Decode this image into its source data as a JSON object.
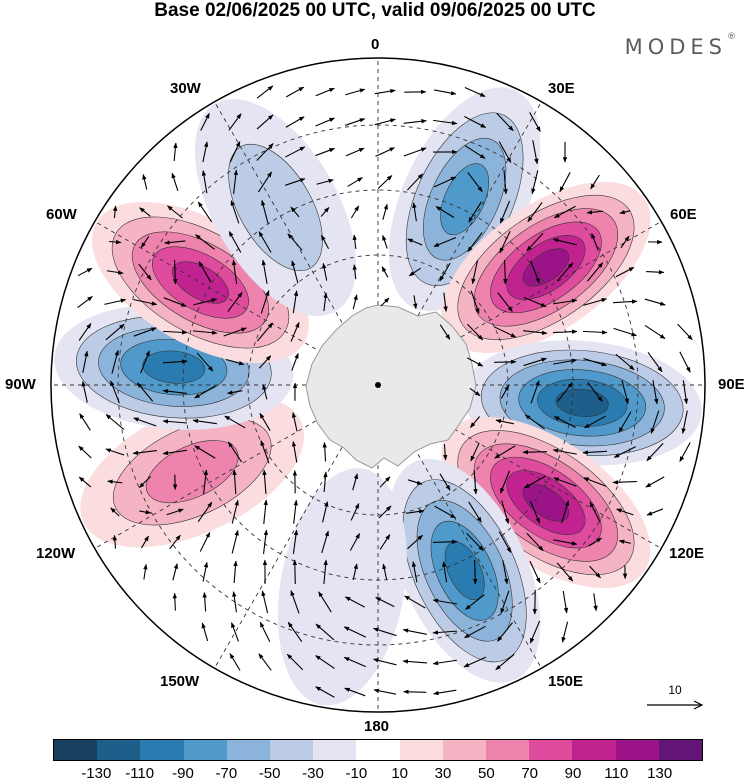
{
  "title": "Base 02/06/2025 00 UTC, valid 09/06/2025 00 UTC",
  "brand": "MODES",
  "brand_mark": "®",
  "longitude_labels": {
    "n0": "0",
    "n30e": "30E",
    "n60e": "60E",
    "n90e": "90E",
    "n120e": "120E",
    "n150e": "150E",
    "n180": "180",
    "n150w": "150W",
    "n120w": "120W",
    "n90w": "90W",
    "n60w": "60W",
    "n30w": "30W"
  },
  "vector_reference": {
    "value": "10"
  },
  "colorbar": {
    "tick_labels": [
      "-130",
      "-110",
      "-90",
      "-70",
      "-50",
      "-30",
      "-10",
      "10",
      "30",
      "50",
      "70",
      "90",
      "110",
      "130"
    ],
    "colors": [
      "#173f5f",
      "#1d5f8a",
      "#2a7cb0",
      "#4f9acb",
      "#8cb4da",
      "#bccbe6",
      "#e4e4f2",
      "#ffffff",
      "#fbdde0",
      "#f5b4c4",
      "#ee83ad",
      "#df4c9e",
      "#c0228f",
      "#9a1487",
      "#641478"
    ]
  },
  "map": {
    "projection": "south-polar-stereographic",
    "landmass": "Antarctica",
    "anomaly_features": [
      {
        "sign": "negative",
        "value": -90,
        "sector": "25E"
      },
      {
        "sign": "positive",
        "value": 120,
        "sector": "55E"
      },
      {
        "sign": "negative",
        "value": -130,
        "sector": "95E"
      },
      {
        "sign": "positive",
        "value": 125,
        "sector": "125E"
      },
      {
        "sign": "negative",
        "value": -100,
        "sector": "155E"
      },
      {
        "sign": "negative",
        "value": -30,
        "sector": "170W"
      },
      {
        "sign": "positive",
        "value": 70,
        "sector": "115W"
      },
      {
        "sign": "negative",
        "value": -110,
        "sector": "85W"
      },
      {
        "sign": "positive",
        "value": 115,
        "sector": "60W"
      },
      {
        "sign": "negative",
        "value": -50,
        "sector": "30W"
      }
    ]
  }
}
